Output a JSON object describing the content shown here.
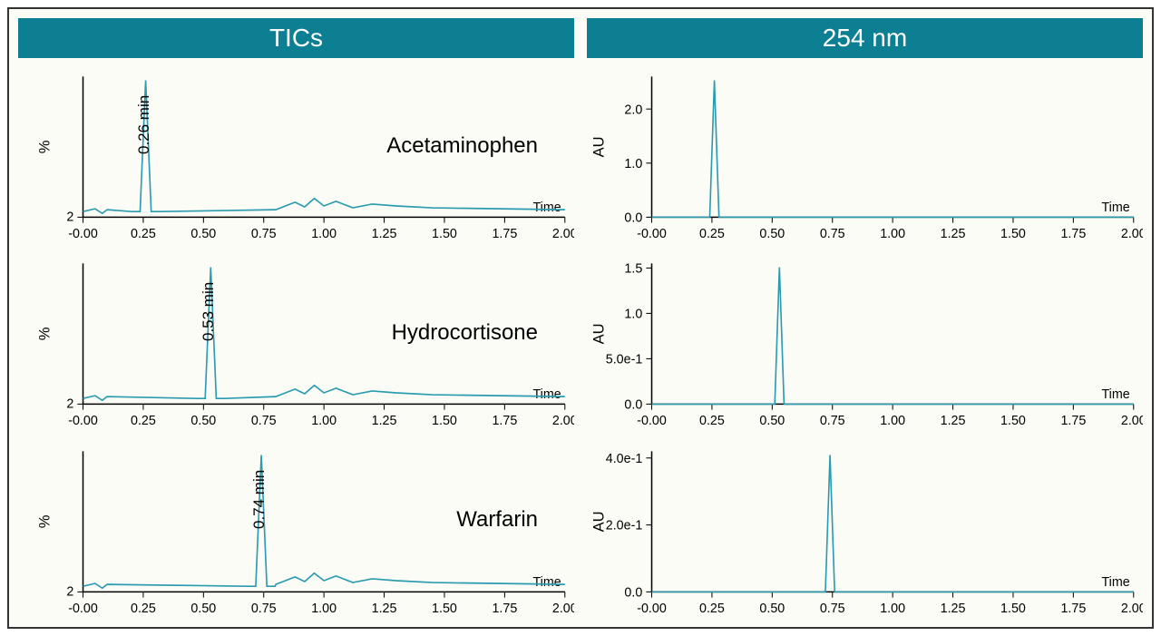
{
  "layout": {
    "columns": 2,
    "rows": 3,
    "outer_border_color": "#333333",
    "background_color": "#fcfcf6",
    "header_bg": "#0c7f93",
    "header_fg": "#ffffff",
    "header_fontsize": 28,
    "trace_color": "#2b9bb0",
    "axis_color": "#000000",
    "tick_fontsize": 14,
    "compound_fontsize": 24,
    "peak_label_fontsize": 17
  },
  "headers": {
    "left": "TICs",
    "right": "254 nm"
  },
  "x_axis": {
    "label": "Time",
    "min": -0.0,
    "max": 2.0,
    "ticks": [
      "-0.00",
      "0.25",
      "0.50",
      "0.75",
      "1.00",
      "1.25",
      "1.50",
      "1.75",
      "2.00"
    ],
    "tick_values": [
      0.0,
      0.25,
      0.5,
      0.75,
      1.0,
      1.25,
      1.5,
      1.75,
      2.0
    ]
  },
  "compounds": [
    {
      "name": "Acetaminophen",
      "peak_rt": 0.26,
      "peak_label": "0.26 min"
    },
    {
      "name": "Hydrocortisone",
      "peak_rt": 0.53,
      "peak_label": "0.53 min"
    },
    {
      "name": "Warfarin",
      "peak_rt": 0.74,
      "peak_label": "0.74 min"
    }
  ],
  "left_column": {
    "ylabel": "%",
    "y_tick_label": "2",
    "baseline_noise": true
  },
  "right_column": {
    "ylabel": "AU",
    "y_axes": [
      {
        "ticks": [
          "0.0",
          "1.0",
          "2.0"
        ],
        "tick_values": [
          0.0,
          1.0,
          2.0
        ],
        "ymax": 2.6
      },
      {
        "ticks": [
          "0.0",
          "5.0e-1",
          "1.0",
          "1.5"
        ],
        "tick_values": [
          0.0,
          0.5,
          1.0,
          1.5
        ],
        "ymax": 1.55
      },
      {
        "ticks": [
          "0.0",
          "2.0e-1",
          "4.0e-1"
        ],
        "tick_values": [
          0.0,
          0.2,
          0.4
        ],
        "ymax": 0.42
      }
    ]
  }
}
